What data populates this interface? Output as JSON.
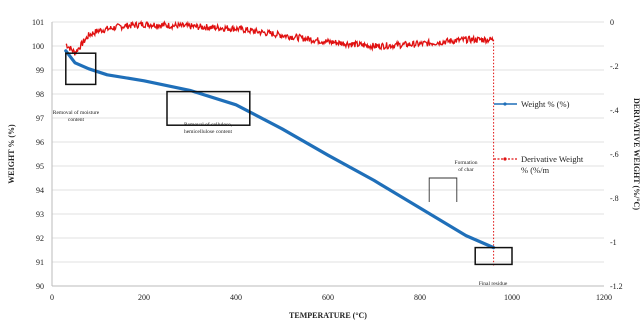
{
  "chart_data": {
    "type": "line",
    "xlabel": "TEMPERATURE (°C)",
    "ylabel": "WEIGHT % (%)",
    "y2label": "DERIVATIVE WEIGHT (%/°C)",
    "xlim": [
      0,
      1200
    ],
    "ylim": [
      90,
      101
    ],
    "y2lim": [
      -1.2,
      0
    ],
    "xticks": [
      0,
      200,
      400,
      600,
      800,
      1000,
      1200
    ],
    "yticks": [
      90,
      91,
      92,
      93,
      94,
      95,
      96,
      97,
      98,
      99,
      100,
      101
    ],
    "y2ticks": [
      0,
      -0.2,
      -0.4,
      -0.6,
      -0.8,
      -1,
      -1.2
    ],
    "grid": "horizontal",
    "series": [
      {
        "name": "Weight % (%)",
        "axis": "left",
        "color": "#1f6fb9",
        "x": [
          30,
          50,
          80,
          120,
          200,
          300,
          400,
          450,
          500,
          600,
          700,
          800,
          900,
          960
        ],
        "y": [
          99.8,
          99.3,
          99.05,
          98.8,
          98.55,
          98.15,
          97.55,
          97.05,
          96.55,
          95.45,
          94.4,
          93.25,
          92.1,
          91.6
        ]
      },
      {
        "name": "Derivative Weight % (%/m",
        "axis": "right",
        "color": "#e01010",
        "style": "noisy",
        "x": [
          30,
          50,
          80,
          100,
          150,
          200,
          300,
          400,
          500,
          600,
          700,
          800,
          900,
          960
        ],
        "y": [
          -0.1,
          -0.14,
          -0.06,
          -0.04,
          -0.02,
          -0.01,
          -0.02,
          -0.03,
          -0.06,
          -0.09,
          -0.11,
          -0.1,
          -0.08,
          -0.08
        ]
      }
    ],
    "annotations": [
      {
        "label": "Removal of moisture content",
        "x": [
          30,
          95
        ],
        "y": [
          99.7,
          98.4
        ]
      },
      {
        "label": "Removal of cellulose, hemicellulose content",
        "x": [
          250,
          430
        ],
        "y": [
          98.1,
          96.7
        ]
      },
      {
        "label": "Formation of char",
        "x": [
          820,
          880
        ],
        "y": [
          94.5,
          93.5
        ]
      },
      {
        "label": "Final residue",
        "x": [
          920,
          1000
        ],
        "y": [
          91.6,
          90.9
        ]
      }
    ],
    "legend_position": "right"
  }
}
